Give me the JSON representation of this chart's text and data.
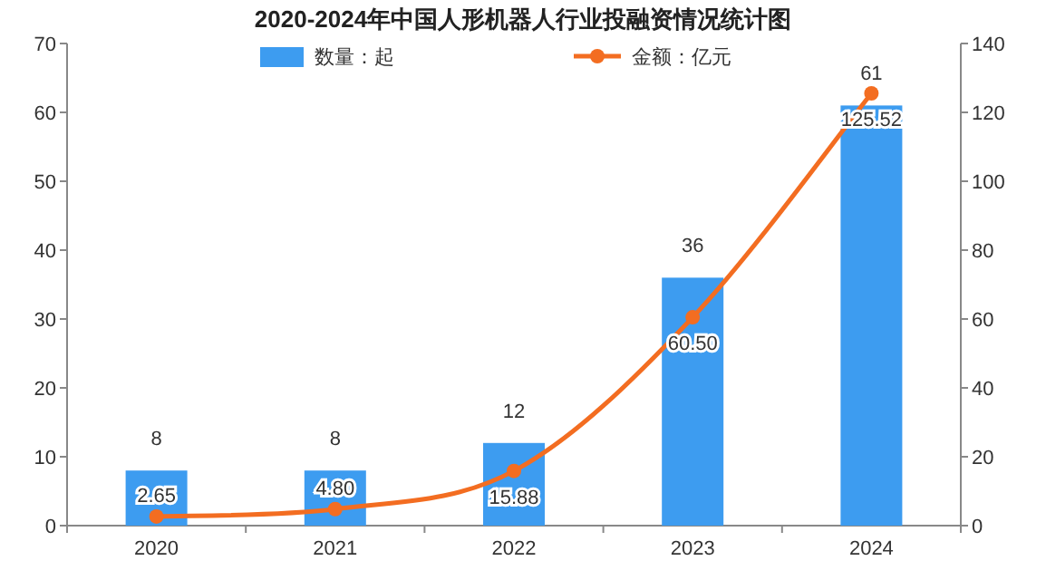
{
  "chart_data": {
    "type": "bar",
    "title": "2020-2024年中国人形机器人行业投融资情况统计图",
    "categories": [
      "2020",
      "2021",
      "2022",
      "2023",
      "2024"
    ],
    "series": [
      {
        "name": "数量：起",
        "type": "bar",
        "color": "#3d9cf0",
        "values": [
          8,
          8,
          12,
          36,
          61
        ],
        "value_labels": [
          "8",
          "8",
          "12",
          "36",
          "61"
        ]
      },
      {
        "name": "金额：亿元",
        "type": "line",
        "axis": "y2",
        "color": "#f36d21",
        "values": [
          2.65,
          4.8,
          15.88,
          60.5,
          125.52
        ],
        "value_labels": [
          "2.65",
          "4.80",
          "15.88",
          "60.50",
          "125.52"
        ]
      }
    ],
    "ylim": [
      0,
      70
    ],
    "yticks": [
      0,
      10,
      20,
      30,
      40,
      50,
      60,
      70
    ],
    "y2lim": [
      0,
      140
    ],
    "y2ticks": [
      0,
      20,
      40,
      60,
      80,
      100,
      120,
      140
    ],
    "marker": "circle",
    "legend": "top",
    "grid": false
  }
}
